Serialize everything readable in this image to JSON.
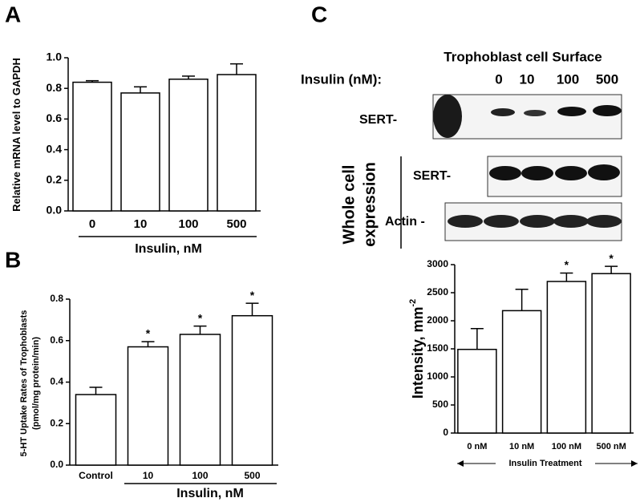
{
  "panel_labels": [
    "A",
    "B",
    "C"
  ],
  "blot": {
    "surface_title": "Trophoblast cell Surface",
    "insulin_label": "Insulin (nM):",
    "lanes": [
      "0",
      "10",
      "100",
      "500"
    ],
    "surface_row_label": "SERT-",
    "whole_cell_label": [
      "Whole cell",
      "expression"
    ],
    "whole_sert_label": "SERT-",
    "actin_label": "Actin -"
  },
  "chart_data": [
    {
      "type": "bar",
      "ylabel": "Relative mRNA level to GAPDH",
      "xlabel": "Insulin, nM",
      "categories": [
        "0",
        "10",
        "100",
        "500"
      ],
      "values": [
        0.84,
        0.77,
        0.86,
        0.89
      ],
      "errors": [
        0.01,
        0.04,
        0.02,
        0.07
      ],
      "color": "#ffffff",
      "ylim": [
        0,
        1
      ],
      "yticks": [
        {
          "value": 0,
          "label": "0.0"
        },
        0.2,
        0.4,
        0.6,
        0.8,
        {
          "value": 1,
          "label": "1.0"
        }
      ]
    },
    {
      "type": "bar",
      "ylabel": [
        "5-HT Uptake Rates of Trophoblasts",
        "(pmol/mg protein/min)"
      ],
      "xlabel": "Insulin, nM",
      "categories": [
        "Control",
        "10",
        "100",
        "500"
      ],
      "values": [
        0.34,
        0.57,
        0.63,
        0.72
      ],
      "errors": [
        0.035,
        0.025,
        0.04,
        0.06
      ],
      "significant": [
        false,
        true,
        true,
        true
      ],
      "significance_mark": "*",
      "color": "#ffffff",
      "ylim": [
        0,
        0.8
      ],
      "yticks": [
        {
          "value": 0,
          "label": "0.0"
        },
        0.2,
        0.4,
        0.6,
        0.8
      ]
    },
    {
      "type": "bar",
      "ylabel": "Intensity, mm",
      "ylabel_superscript": "-2",
      "xlabel": "Insulin Treatment",
      "categories": [
        "0 nM",
        "10 nM",
        "100 nM",
        "500 nM"
      ],
      "values": [
        1490,
        2180,
        2700,
        2840
      ],
      "errors": [
        370,
        380,
        150,
        130
      ],
      "significant": [
        false,
        false,
        true,
        true
      ],
      "significance_mark": "*",
      "color": "#ffffff",
      "ylim": [
        0,
        3000
      ],
      "yticks": [
        0,
        500,
        1000,
        1500,
        2000,
        2500,
        3000
      ]
    }
  ]
}
